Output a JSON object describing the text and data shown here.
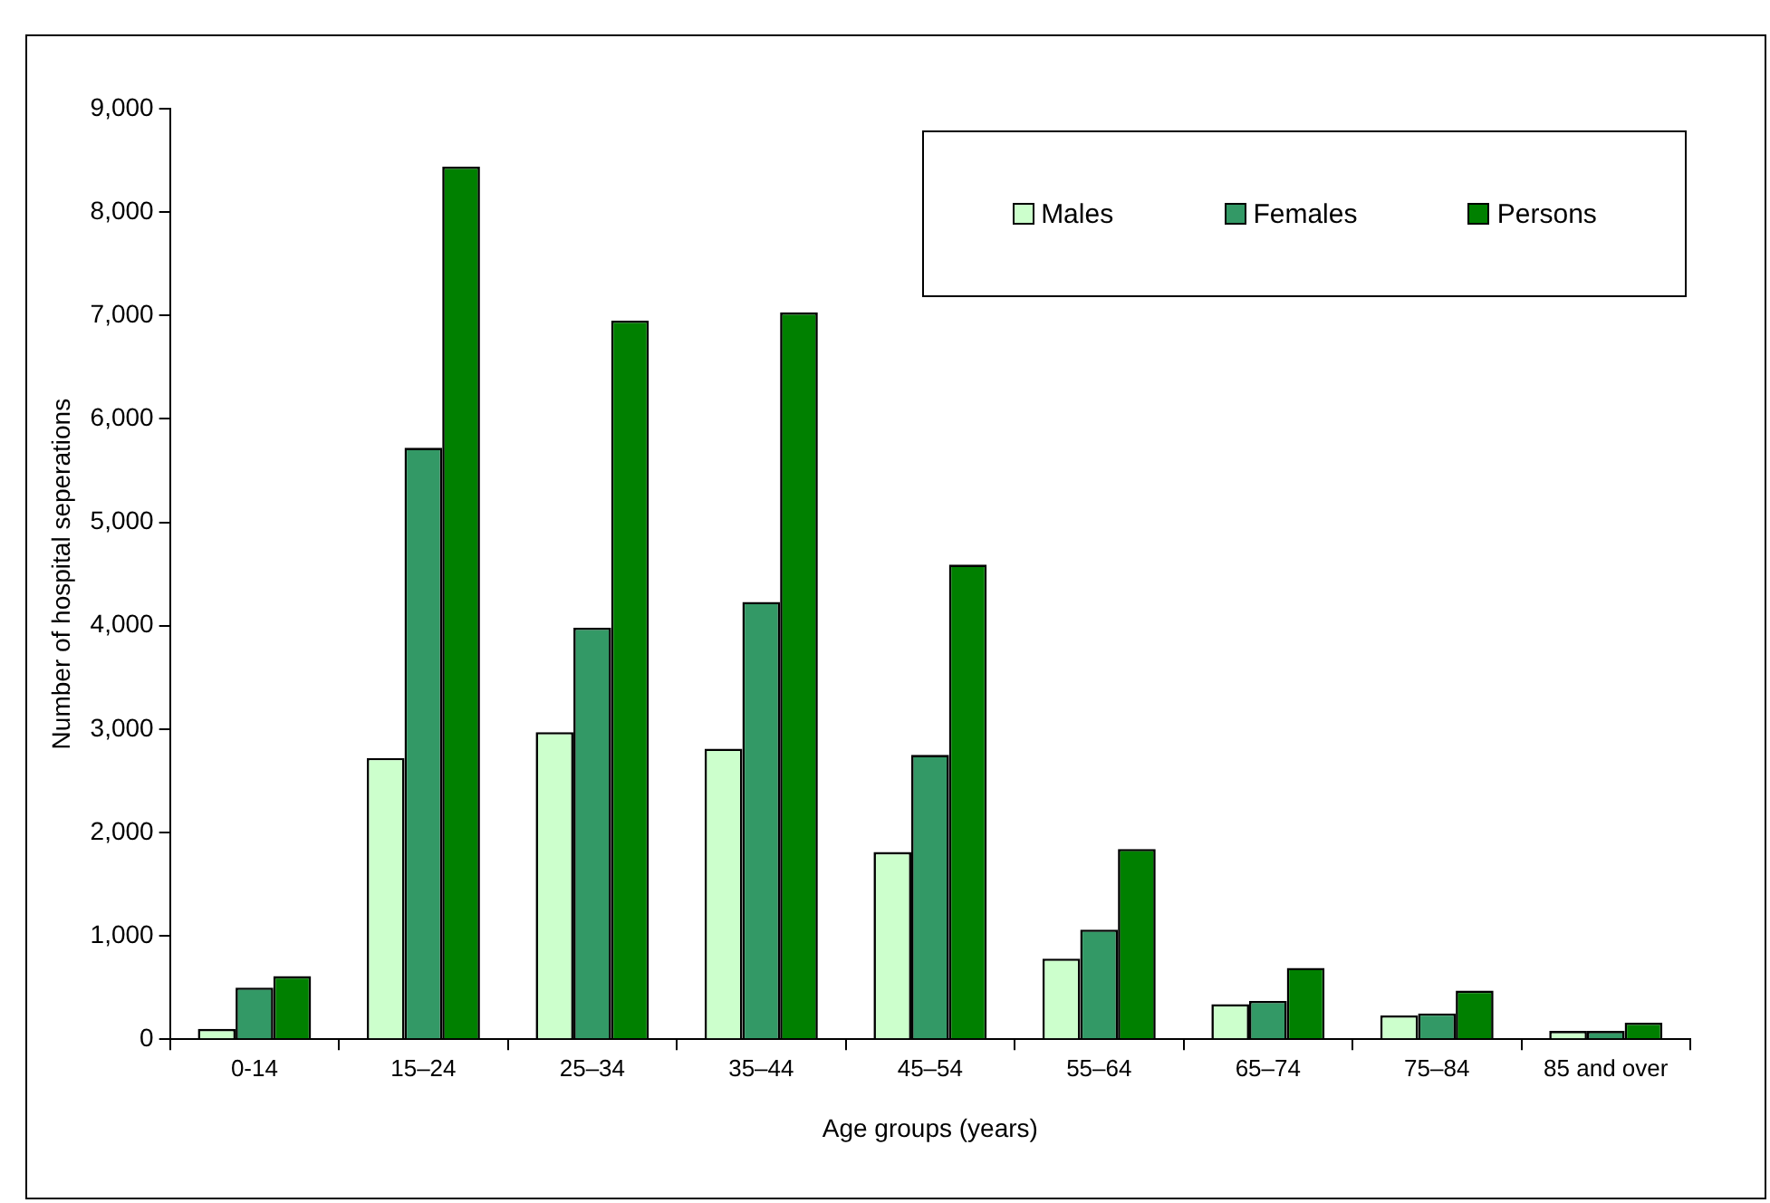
{
  "chart_data": {
    "type": "bar",
    "xlabel": "Age groups (years)",
    "ylabel": "Number of hospital seperations",
    "categories": [
      "0-14",
      "15–24",
      "25–34",
      "35–44",
      "45–54",
      "55–64",
      "65–74",
      "75–84",
      "85 and over"
    ],
    "series": [
      {
        "name": "Males",
        "color": "#ccffcc",
        "values": [
          100,
          2720,
          2970,
          2810,
          1810,
          780,
          340,
          230,
          80
        ]
      },
      {
        "name": "Females",
        "color": "#339966",
        "values": [
          500,
          5720,
          3980,
          4230,
          2750,
          1060,
          370,
          250,
          80
        ]
      },
      {
        "name": "Persons",
        "color": "#008000",
        "values": [
          610,
          8440,
          6950,
          7030,
          4590,
          1840,
          690,
          470,
          160
        ]
      }
    ],
    "ylim": [
      0,
      9000
    ],
    "yticks": [
      0,
      {
        "value": 1000,
        "label": "1,000"
      },
      {
        "value": 2000,
        "label": "2,000"
      },
      {
        "value": 3000,
        "label": "3,000"
      },
      {
        "value": 4000,
        "label": "4,000"
      },
      {
        "value": 5000,
        "label": "5,000"
      },
      {
        "value": 6000,
        "label": "6,000"
      },
      {
        "value": 7000,
        "label": "7,000"
      },
      {
        "value": 8000,
        "label": "8,000"
      },
      {
        "value": 9000,
        "label": "9,000"
      }
    ],
    "grid": false,
    "legend": "top right"
  }
}
